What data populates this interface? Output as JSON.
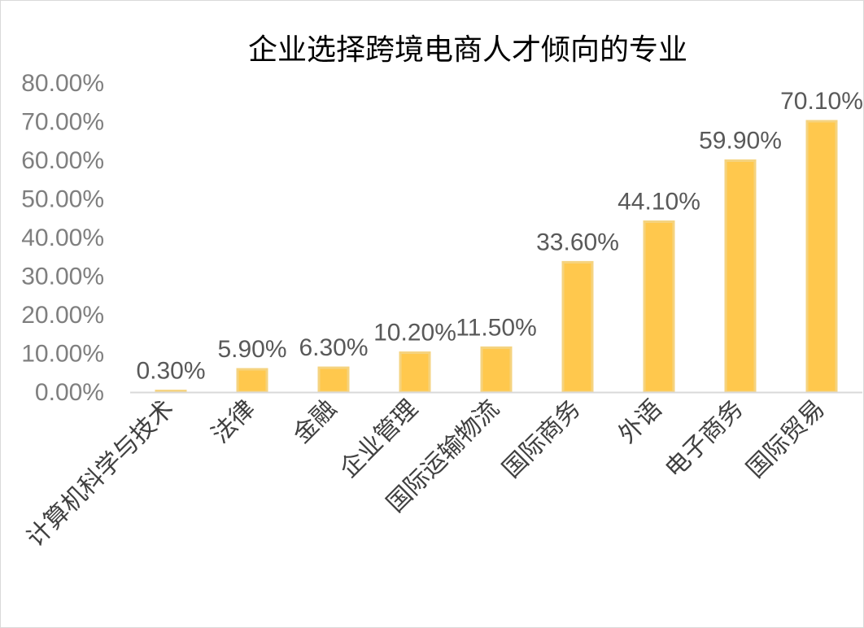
{
  "chart_data": {
    "type": "bar",
    "title": "企业选择跨境电商人才倾向的专业",
    "categories": [
      "计算机科学与技术",
      "法律",
      "金融",
      "企业管理",
      "国际运输物流",
      "国际商务",
      "外语",
      "电子商务",
      "国际贸易"
    ],
    "values": [
      0.3,
      5.9,
      6.3,
      10.2,
      11.5,
      33.6,
      44.1,
      59.9,
      70.1
    ],
    "data_labels": [
      "0.30%",
      "5.90%",
      "6.30%",
      "10.20%",
      "11.50%",
      "33.60%",
      "44.10%",
      "59.90%",
      "70.10%"
    ],
    "y_ticks": [
      0,
      10,
      20,
      30,
      40,
      50,
      60,
      70,
      80
    ],
    "y_tick_labels": [
      "0.00%",
      "10.00%",
      "20.00%",
      "30.00%",
      "40.00%",
      "50.00%",
      "60.00%",
      "70.00%",
      "80.00%"
    ],
    "ylim": [
      0,
      80
    ],
    "xlabel": "",
    "ylabel": "",
    "grid": false,
    "legend": "none",
    "colors": {
      "bar_fill": "#FFC84D",
      "bar_edge": "#F5D37F",
      "axis": "#d9d9d9"
    }
  }
}
